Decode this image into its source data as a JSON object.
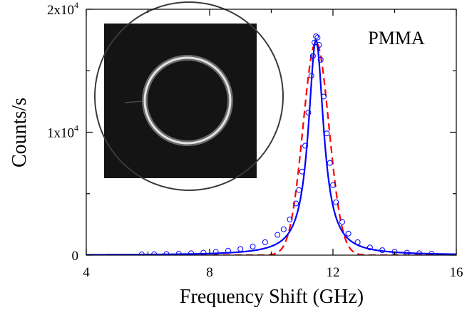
{
  "chart_data": {
    "type": "scatter",
    "xlabel": "Frequency Shift (GHz)",
    "ylabel": "Counts/s",
    "xlim": [
      4,
      16
    ],
    "ylim": [
      0,
      20000
    ],
    "xticks": [
      4,
      8,
      12,
      16
    ],
    "xtick_labels": [
      "4",
      "8",
      "12",
      "16"
    ],
    "yticks": [
      {
        "value": 0,
        "base": "0",
        "exp": ""
      },
      {
        "value": 10000,
        "base": "1x10",
        "exp": "4"
      },
      {
        "value": 20000,
        "base": "2x10",
        "exp": "4"
      }
    ],
    "annotation": "PMMA",
    "grid": false,
    "series": [
      {
        "style": "open-circle markers",
        "color": "#0000ff",
        "points": [
          [
            5.8,
            55
          ],
          [
            6.2,
            70
          ],
          [
            6.6,
            90
          ],
          [
            7.0,
            115
          ],
          [
            7.4,
            150
          ],
          [
            7.8,
            200
          ],
          [
            8.2,
            265
          ],
          [
            8.6,
            360
          ],
          [
            9.0,
            500
          ],
          [
            9.4,
            700
          ],
          [
            9.8,
            1050
          ],
          [
            10.2,
            1650
          ],
          [
            10.4,
            2100
          ],
          [
            10.6,
            2900
          ],
          [
            10.8,
            4200
          ],
          [
            10.9,
            5300
          ],
          [
            11.0,
            6800
          ],
          [
            11.1,
            8900
          ],
          [
            11.2,
            11600
          ],
          [
            11.3,
            14600
          ],
          [
            11.35,
            16200
          ],
          [
            11.4,
            17300
          ],
          [
            11.45,
            17800
          ],
          [
            11.5,
            17700
          ],
          [
            11.55,
            17100
          ],
          [
            11.6,
            15900
          ],
          [
            11.7,
            12900
          ],
          [
            11.8,
            9900
          ],
          [
            11.9,
            7500
          ],
          [
            12.0,
            5700
          ],
          [
            12.1,
            4300
          ],
          [
            12.3,
            2700
          ],
          [
            12.5,
            1750
          ],
          [
            12.8,
            1050
          ],
          [
            13.2,
            620
          ],
          [
            13.6,
            400
          ],
          [
            14.0,
            280
          ],
          [
            14.4,
            200
          ],
          [
            14.8,
            150
          ],
          [
            15.2,
            115
          ]
        ]
      },
      {
        "style": "solid line",
        "color": "#0000ff",
        "peak_center": 11.45,
        "peak_height": 17500,
        "half_width": 0.3
      },
      {
        "style": "dashed line",
        "color": "#ff0000",
        "peak_center": 11.45,
        "peak_height": 17300,
        "sigma": 0.42
      }
    ]
  }
}
